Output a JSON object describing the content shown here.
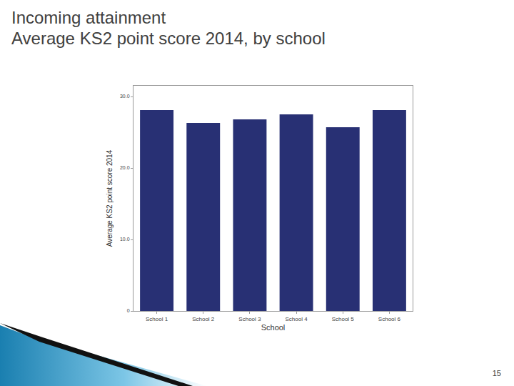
{
  "chart_data": {
    "type": "bar",
    "title": "Incoming attainment",
    "subtitle": "Average KS2 point score 2014, by school",
    "x_label": "School",
    "y_label": "Average KS2 point score 2014",
    "categories": [
      "School 1",
      "School 2",
      "School 3",
      "School 4",
      "School 5",
      "School 6"
    ],
    "values": [
      28.1,
      26.3,
      26.8,
      27.5,
      25.7,
      28.1
    ],
    "color": "#283074",
    "ylim": [
      0,
      31.5
    ],
    "yticks": [
      0,
      {
        "value": 10,
        "label": "10.0"
      },
      {
        "value": 20,
        "label": "20.0"
      },
      {
        "value": 30,
        "label": "30.0"
      }
    ],
    "grid": false
  },
  "page_number": "15"
}
